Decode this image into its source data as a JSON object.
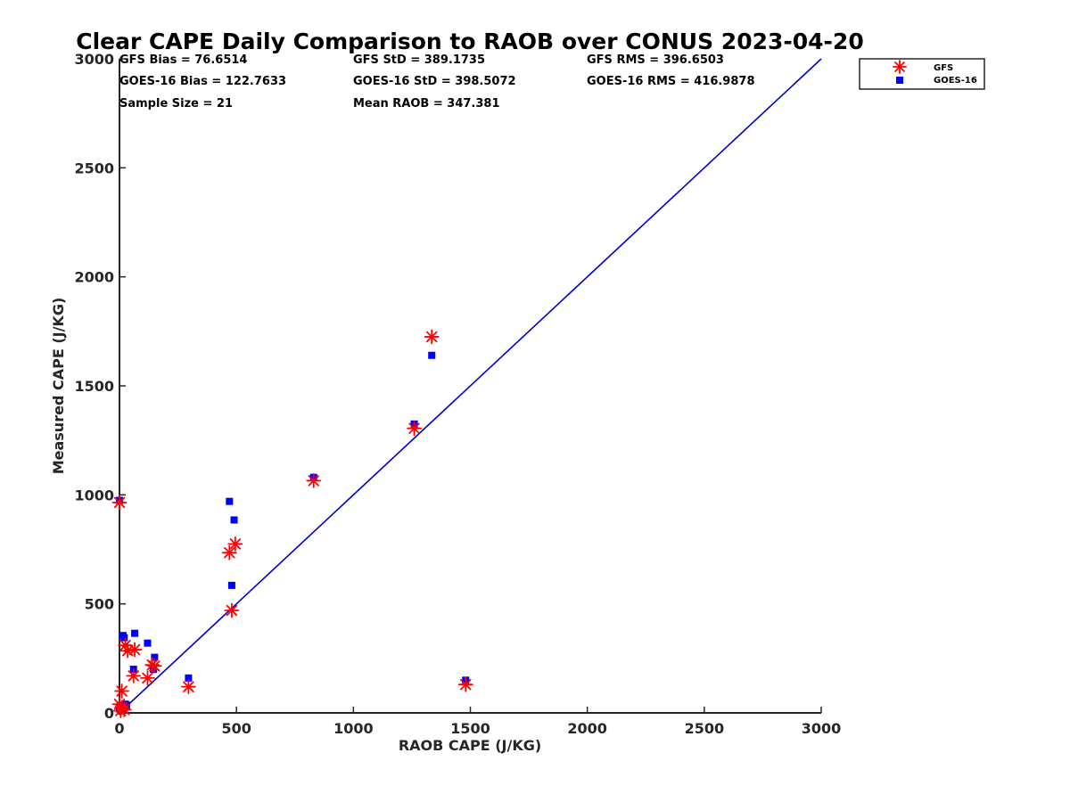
{
  "chart_data": {
    "type": "scatter",
    "title": "Clear CAPE Daily Comparison to RAOB over CONUS 2023-04-20",
    "xlabel": "RAOB CAPE (J/KG)",
    "ylabel": "Measured CAPE (J/KG)",
    "xlim": [
      0,
      3000
    ],
    "ylim": [
      0,
      3000
    ],
    "xticks": [
      "0",
      "500",
      "1000",
      "1500",
      "2000",
      "2500",
      "3000"
    ],
    "yticks": [
      "0",
      "500",
      "1000",
      "1500",
      "2000",
      "2500",
      "3000"
    ],
    "grid": false,
    "legend_position": "top-right, outside plot",
    "reference_line": {
      "x": [
        0,
        3000
      ],
      "y": [
        0,
        3000
      ],
      "color": "#0000cc"
    },
    "stats": [
      [
        "GFS Bias = 76.6514",
        "GFS StD = 389.1735",
        "GFS RMS = 396.6503"
      ],
      [
        "GOES-16 Bias = 122.7633",
        "GOES-16 StD = 398.5072",
        "GOES-16 RMS = 416.9878"
      ],
      [
        "Sample Size = 21",
        "Mean RAOB = 347.381"
      ]
    ],
    "series": [
      {
        "name": "GFS",
        "marker": "asterisk",
        "color": "#ff0000",
        "x": [
          0,
          0,
          5,
          10,
          10,
          20,
          25,
          35,
          60,
          65,
          120,
          140,
          150,
          295,
          470,
          480,
          495,
          830,
          1260,
          1335,
          1480
        ],
        "y": [
          965,
          40,
          10,
          25,
          100,
          15,
          310,
          285,
          170,
          290,
          160,
          220,
          215,
          120,
          735,
          470,
          775,
          1065,
          1305,
          1725,
          130
        ]
      },
      {
        "name": "GOES-16",
        "marker": "square",
        "color": "#0000ff",
        "x": [
          0,
          0,
          5,
          10,
          15,
          20,
          25,
          60,
          65,
          120,
          145,
          150,
          295,
          470,
          480,
          490,
          830,
          1260,
          1335,
          1480,
          30
        ],
        "y": [
          975,
          20,
          10,
          30,
          355,
          345,
          40,
          200,
          365,
          320,
          200,
          255,
          160,
          970,
          585,
          885,
          1080,
          1325,
          1640,
          150,
          35
        ]
      }
    ]
  }
}
